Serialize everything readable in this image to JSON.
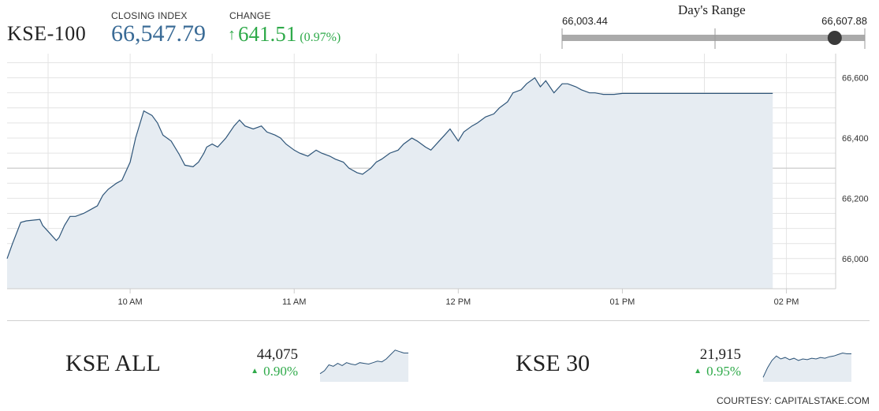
{
  "header": {
    "index_name": "KSE-100",
    "closing_label": "CLOSING INDEX",
    "closing_value": "66,547.79",
    "change_label": "CHANGE",
    "change_arrow": "↑",
    "change_value": "641.51",
    "change_percent": "(0.97%)"
  },
  "days_range": {
    "title": "Day's Range",
    "low_label": "66,003.44",
    "high_label": "66,607.88",
    "low": 66003.44,
    "high": 66607.88,
    "current": 66547.79
  },
  "colors": {
    "line": "#2d5478",
    "fill": "#e6ecf2",
    "positive": "#2faa4a",
    "closing": "#3a6b96",
    "grid": "#e4e4e4"
  },
  "chart_data": [
    {
      "type": "area",
      "title": "",
      "xlabel": "",
      "ylabel": "",
      "x_ticks": [
        "10 AM",
        "11 AM",
        "12 PM",
        "01 PM",
        "02 PM"
      ],
      "x_tick_minutes": [
        60,
        120,
        180,
        240,
        300
      ],
      "y_ticks": [
        66000,
        66200,
        66400,
        66600
      ],
      "y_tick_labels": [
        "66,000",
        "66,200",
        "66,400",
        "66,600"
      ],
      "xlim": [
        15,
        318
      ],
      "ylim": [
        65900,
        66680
      ],
      "grid": true,
      "baseline": 66300,
      "x": [
        15,
        17,
        20,
        22,
        27,
        28,
        31,
        33,
        34,
        36,
        38,
        40,
        43,
        45,
        48,
        50,
        52,
        55,
        57,
        60,
        62,
        65,
        68,
        70,
        72,
        75,
        78,
        80,
        83,
        85,
        87,
        88,
        90,
        92,
        95,
        98,
        100,
        102,
        105,
        108,
        110,
        113,
        115,
        117,
        120,
        122,
        125,
        128,
        130,
        133,
        135,
        138,
        140,
        143,
        145,
        148,
        150,
        152,
        155,
        158,
        160,
        163,
        165,
        168,
        170,
        173,
        175,
        177,
        180,
        182,
        185,
        187,
        190,
        193,
        195,
        198,
        200,
        203,
        205,
        208,
        210,
        212,
        215,
        218,
        220,
        223,
        225,
        228,
        230,
        233,
        235,
        237,
        240,
        243,
        245,
        248,
        250,
        253,
        255,
        257,
        258,
        260,
        262,
        265,
        275,
        285,
        290,
        295
      ],
      "values": [
        66000,
        66050,
        66120,
        66125,
        66130,
        66110,
        66080,
        66060,
        66070,
        66110,
        66140,
        66140,
        66150,
        66160,
        66175,
        66210,
        66230,
        66250,
        66260,
        66320,
        66400,
        66490,
        66475,
        66450,
        66410,
        66390,
        66345,
        66310,
        66305,
        66320,
        66350,
        66370,
        66380,
        66370,
        66400,
        66440,
        66460,
        66440,
        66430,
        66440,
        66420,
        66410,
        66400,
        66380,
        66360,
        66350,
        66340,
        66360,
        66350,
        66340,
        66330,
        66320,
        66300,
        66285,
        66280,
        66300,
        66320,
        66330,
        66350,
        66360,
        66380,
        66400,
        66390,
        66370,
        66360,
        66390,
        66410,
        66430,
        66390,
        66420,
        66440,
        66450,
        66470,
        66480,
        66500,
        66520,
        66550,
        66560,
        66580,
        66600,
        66570,
        66590,
        66550,
        66580,
        66580,
        66570,
        66560,
        66550,
        66550,
        66545,
        66545,
        66545,
        66548,
        66548,
        66548,
        66548,
        66548,
        66548,
        66548,
        66548,
        66548,
        66548,
        66548,
        66548,
        66548,
        66548,
        66548,
        66548
      ]
    },
    {
      "type": "area",
      "title": "KSE ALL",
      "value": "44,075",
      "change": "0.90%",
      "arrow": "▲",
      "x": [
        0,
        1,
        2,
        3,
        4,
        5,
        6,
        7,
        8,
        9,
        10,
        11,
        12,
        13,
        14,
        15,
        16,
        17,
        18,
        19,
        20
      ],
      "values": [
        10,
        14,
        22,
        20,
        24,
        21,
        25,
        23,
        22,
        25,
        24,
        23,
        25,
        27,
        26,
        30,
        36,
        42,
        40,
        38,
        38
      ]
    },
    {
      "type": "area",
      "title": "KSE 30",
      "value": "21,915",
      "change": "0.95%",
      "arrow": "▲",
      "x": [
        0,
        1,
        2,
        3,
        4,
        5,
        6,
        7,
        8,
        9,
        10,
        11,
        12,
        13,
        14,
        15,
        16,
        17,
        18,
        19,
        20
      ],
      "values": [
        5,
        18,
        28,
        34,
        30,
        32,
        29,
        31,
        28,
        30,
        29,
        31,
        30,
        32,
        31,
        33,
        34,
        36,
        38,
        37,
        37
      ]
    }
  ],
  "footer": {
    "kse_all": {
      "name": "KSE ALL",
      "value": "44,075",
      "arrow": "▲",
      "change": "0.90%"
    },
    "kse_30": {
      "name": "KSE 30",
      "value": "21,915",
      "arrow": "▲",
      "change": "0.95%"
    },
    "courtesy": "COURTESY: CAPITALSTAKE.COM"
  }
}
